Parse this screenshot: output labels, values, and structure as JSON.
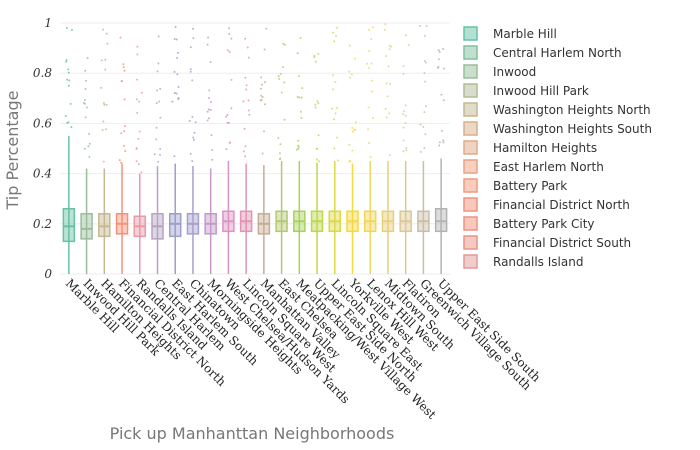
{
  "chart_data": {
    "type": "box",
    "xlabel": "Pick up Manhanttan Neighborhoods",
    "ylabel": "Tip Percentage",
    "ylim": [
      0,
      1
    ],
    "yticks": [
      0,
      0.2,
      0.4,
      0.6,
      0.8,
      1
    ],
    "ytick_labels": [
      "0",
      "0.2",
      "0.4",
      "0.6",
      "0.8",
      "1"
    ],
    "grid": true,
    "legend_position": "right",
    "legend": [
      {
        "name": "Marble Hill",
        "color": "#66c2a5"
      },
      {
        "name": "Central Harlem North",
        "color": "#82bfa0"
      },
      {
        "name": "Inwood",
        "color": "#9abd9b"
      },
      {
        "name": "Inwood Hill Park",
        "color": "#b0bb96"
      },
      {
        "name": "Washington Heights North",
        "color": "#c4b891"
      },
      {
        "name": "Washington Heights South",
        "color": "#d6b08c"
      },
      {
        "name": "Hamilton Heights",
        "color": "#e2aa88"
      },
      {
        "name": "East Harlem North",
        "color": "#eba184"
      },
      {
        "name": "Battery Park",
        "color": "#f29a7e"
      },
      {
        "name": "Financial District North",
        "color": "#f3927b"
      },
      {
        "name": "Battery Park City",
        "color": "#f0927e"
      },
      {
        "name": "Financial District South",
        "color": "#e99488"
      },
      {
        "name": "Randalls Island",
        "color": "#e39a99"
      }
    ],
    "categories": [
      "Marble Hill",
      "Inwood Hill Park",
      "Hamilton Heights",
      "Financial District North",
      "Randalls Island",
      "Central Harlem",
      "East Harlem South",
      "Chinatown",
      "Morningside Heights",
      "West Chelsea/Hudson Yards",
      "Lincoln Square West",
      "Manhattan Valley",
      "East Chelsea",
      "Meatpacking/West Village West",
      "Upper East Side North",
      "Lincoln Square East",
      "Yorkville West",
      "Lenox Hill West",
      "Midtown South",
      "Flatiron",
      "Greenwich Village South",
      "Upper East Side South"
    ],
    "boxes": [
      {
        "q1": 0.13,
        "median": 0.19,
        "q3": 0.26,
        "upper": 0.55,
        "color": "#66c2a5"
      },
      {
        "q1": 0.14,
        "median": 0.18,
        "q3": 0.24,
        "upper": 0.42,
        "color": "#9abd9b"
      },
      {
        "q1": 0.15,
        "median": 0.19,
        "q3": 0.24,
        "upper": 0.42,
        "color": "#c4b891"
      },
      {
        "q1": 0.16,
        "median": 0.2,
        "q3": 0.24,
        "upper": 0.44,
        "color": "#f3927b"
      },
      {
        "q1": 0.15,
        "median": 0.19,
        "q3": 0.23,
        "upper": 0.4,
        "color": "#e89aa9"
      },
      {
        "q1": 0.14,
        "median": 0.19,
        "q3": 0.24,
        "upper": 0.43,
        "color": "#b6a3c4"
      },
      {
        "q1": 0.15,
        "median": 0.2,
        "q3": 0.24,
        "upper": 0.44,
        "color": "#9d9fcb"
      },
      {
        "q1": 0.16,
        "median": 0.2,
        "q3": 0.24,
        "upper": 0.43,
        "color": "#a7a0cb"
      },
      {
        "q1": 0.16,
        "median": 0.2,
        "q3": 0.24,
        "upper": 0.42,
        "color": "#c49ac9"
      },
      {
        "q1": 0.17,
        "median": 0.21,
        "q3": 0.25,
        "upper": 0.45,
        "color": "#dd92c6"
      },
      {
        "q1": 0.17,
        "median": 0.21,
        "q3": 0.25,
        "upper": 0.44,
        "color": "#e393b4"
      },
      {
        "q1": 0.16,
        "median": 0.2,
        "q3": 0.24,
        "upper": 0.43,
        "color": "#c6ac93"
      },
      {
        "q1": 0.17,
        "median": 0.21,
        "q3": 0.25,
        "upper": 0.45,
        "color": "#b3c96f"
      },
      {
        "q1": 0.17,
        "median": 0.21,
        "q3": 0.25,
        "upper": 0.45,
        "color": "#a9d25c"
      },
      {
        "q1": 0.17,
        "median": 0.21,
        "q3": 0.25,
        "upper": 0.44,
        "color": "#bfd74d"
      },
      {
        "q1": 0.17,
        "median": 0.21,
        "q3": 0.25,
        "upper": 0.45,
        "color": "#dcd946"
      },
      {
        "q1": 0.17,
        "median": 0.21,
        "q3": 0.25,
        "upper": 0.44,
        "color": "#f5d93e"
      },
      {
        "q1": 0.17,
        "median": 0.21,
        "q3": 0.25,
        "upper": 0.45,
        "color": "#f2d65a"
      },
      {
        "q1": 0.17,
        "median": 0.21,
        "q3": 0.25,
        "upper": 0.45,
        "color": "#e8cf7a"
      },
      {
        "q1": 0.17,
        "median": 0.21,
        "q3": 0.25,
        "upper": 0.45,
        "color": "#dcc796"
      },
      {
        "q1": 0.17,
        "median": 0.21,
        "q3": 0.25,
        "upper": 0.45,
        "color": "#c9bea8"
      },
      {
        "q1": 0.17,
        "median": 0.21,
        "q3": 0.26,
        "upper": 0.46,
        "color": "#b3b3b3"
      }
    ]
  }
}
